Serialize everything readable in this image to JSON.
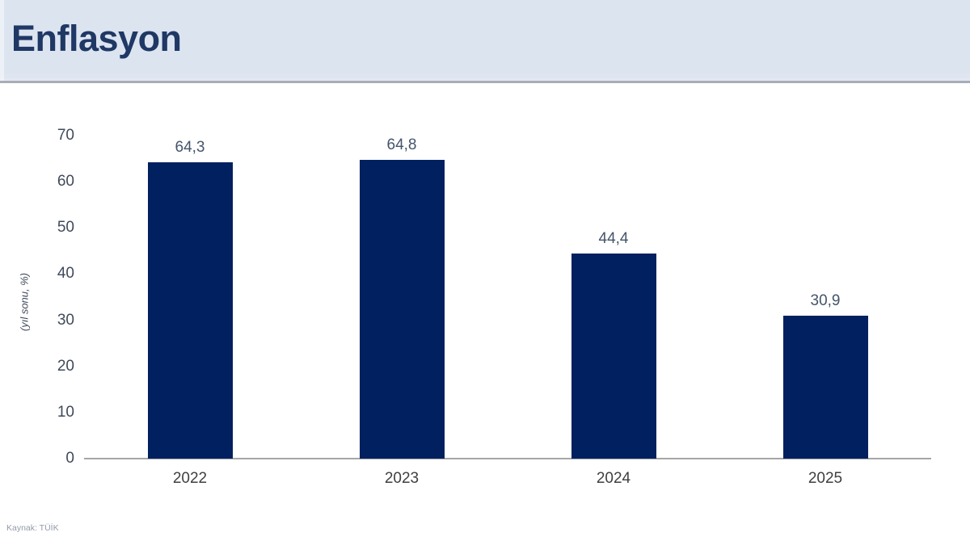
{
  "header": {
    "title": "Enflasyon"
  },
  "chart_data": {
    "type": "bar",
    "title": "Enflasyon",
    "categories": [
      "2022",
      "2023",
      "2024",
      "2025"
    ],
    "values": [
      64.3,
      64.8,
      44.4,
      30.9
    ],
    "value_labels": [
      "64,3",
      "64,8",
      "44,4",
      "30,9"
    ],
    "xlabel": "",
    "ylabel": "(yıl sonu, %)",
    "ylim": [
      0,
      70
    ],
    "yticks": [
      0,
      10,
      20,
      30,
      40,
      50,
      60,
      70
    ],
    "grid": false,
    "legend": false,
    "bar_color": "#002060"
  },
  "source": {
    "label": "Kaynak: TÜİK"
  },
  "colors": {
    "header_bg": "#dce4f0",
    "title": "#1f3864",
    "bar": "#002060",
    "axis": "#a6a6a6",
    "value_label": "#44546a",
    "tick_label": "#404a5a",
    "xtick_label": "#3f3f3f",
    "source_text": "#939aa8"
  }
}
